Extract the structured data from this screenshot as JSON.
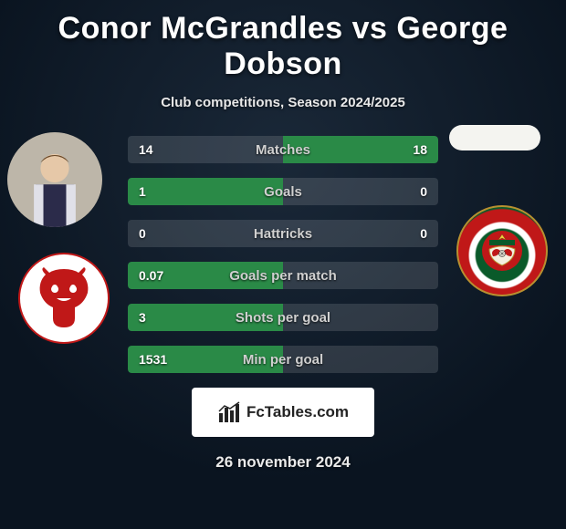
{
  "header": {
    "title": "Conor McGrandles vs George Dobson",
    "subtitle": "Club competitions, Season 2024/2025"
  },
  "stats": {
    "highlight_bg": "#2a8a47",
    "dim_bg": "rgba(255,255,255,0.08)",
    "rows": [
      {
        "label": "Matches",
        "left": "14",
        "right": "18",
        "winner": "right"
      },
      {
        "label": "Goals",
        "left": "1",
        "right": "0",
        "winner": "left"
      },
      {
        "label": "Hattricks",
        "left": "0",
        "right": "0",
        "winner": "none"
      },
      {
        "label": "Goals per match",
        "left": "0.07",
        "right": "",
        "winner": "left"
      },
      {
        "label": "Shots per goal",
        "left": "3",
        "right": "",
        "winner": "left"
      },
      {
        "label": "Min per goal",
        "left": "1531",
        "right": "",
        "winner": "left"
      }
    ]
  },
  "footer": {
    "brand_prefix": "Fc",
    "brand_suffix": "Tables.com",
    "date": "26 november 2024"
  },
  "style": {
    "title_fontsize": 34,
    "subtitle_fontsize": 15,
    "row_label_fontsize": 15,
    "row_value_fontsize": 14,
    "date_fontsize": 17,
    "accent_green": "#2a8a47",
    "background_top": "#1a2838",
    "background_bottom": "#0a1420",
    "text_color": "#ffffff"
  }
}
